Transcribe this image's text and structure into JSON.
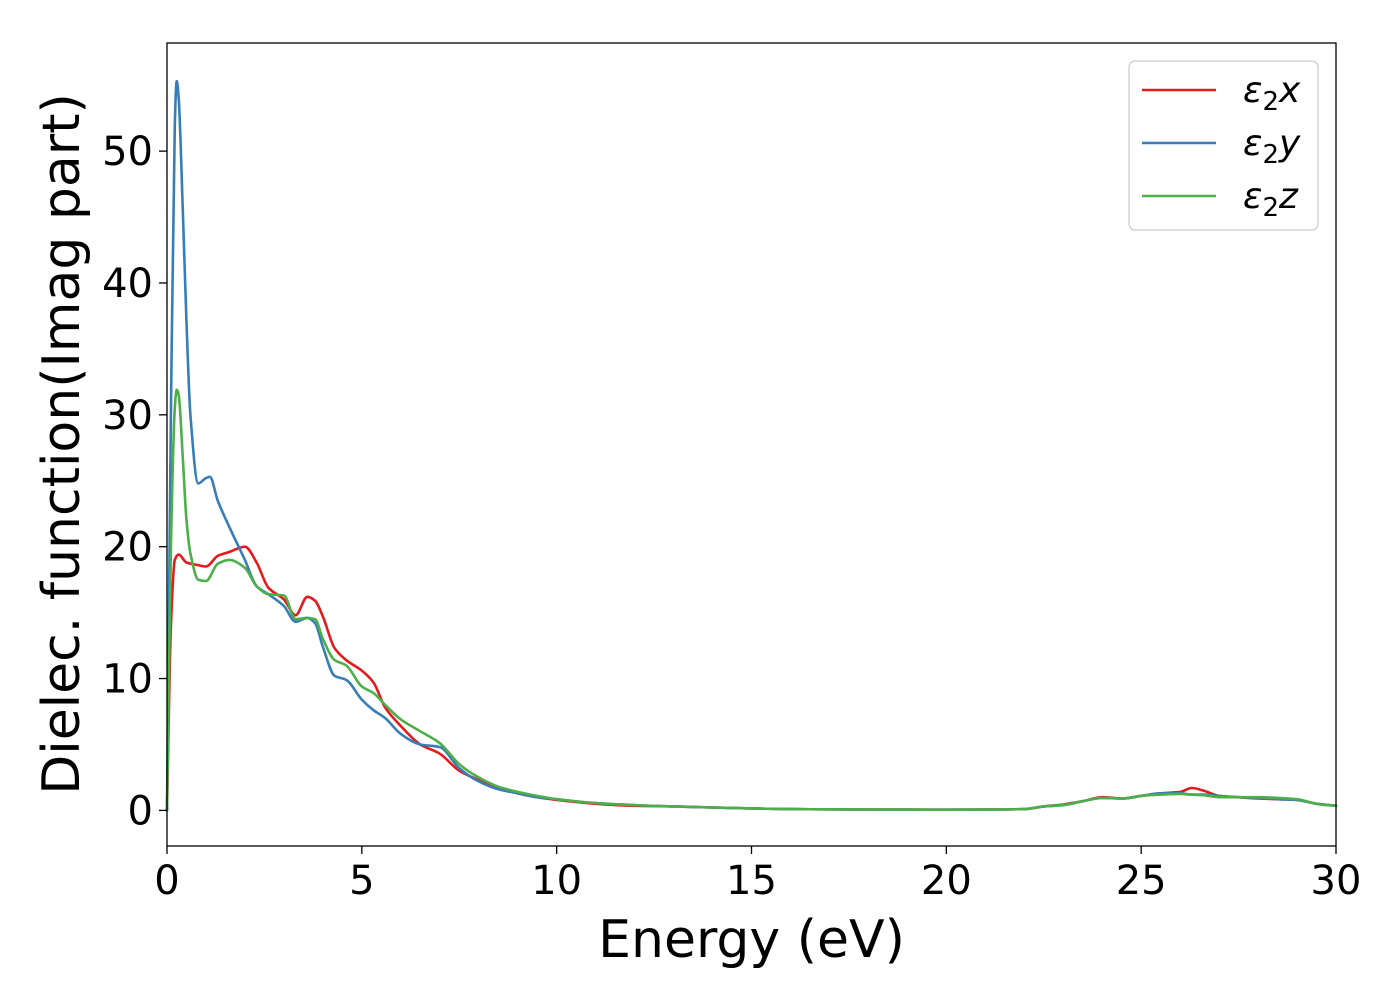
{
  "chart_data": {
    "type": "line",
    "title": "",
    "xlabel": "Energy (eV)",
    "ylabel": "Dielec. function(Imag part)",
    "xlim": [
      0,
      30
    ],
    "ylim": [
      -2.7,
      58.2
    ],
    "xticks": [
      0,
      5,
      10,
      15,
      20,
      25,
      30
    ],
    "xtick_labels": [
      "0",
      "5",
      "10",
      "15",
      "20",
      "25",
      "30"
    ],
    "yticks": [
      0,
      10,
      20,
      30,
      40,
      50
    ],
    "ytick_labels": [
      "0",
      "10",
      "20",
      "30",
      "40",
      "50"
    ],
    "grid": false,
    "legend_position": "top-right",
    "series": [
      {
        "name": "ε2x",
        "legend_base": "ε",
        "legend_sub": "2",
        "legend_suffix": "x",
        "color": "#e41a1c",
        "x": [
          0,
          0.1,
          0.2,
          0.3,
          0.5,
          0.8,
          1.0,
          1.3,
          1.6,
          2.0,
          2.3,
          2.6,
          3.0,
          3.3,
          3.6,
          3.8,
          4.0,
          4.3,
          4.6,
          5.0,
          5.3,
          5.6,
          6.0,
          6.5,
          7.0,
          7.5,
          8.0,
          8.5,
          9.0,
          9.5,
          10,
          11,
          12,
          13,
          14,
          15,
          16,
          17,
          18,
          19,
          20,
          21,
          22,
          22.5,
          23,
          23.5,
          24,
          24.5,
          25,
          25.5,
          26,
          26.3,
          26.6,
          27,
          27.5,
          28,
          28.5,
          29,
          29.5,
          30
        ],
        "y": [
          0,
          14,
          19,
          19.4,
          18.8,
          18.6,
          18.5,
          19.3,
          19.6,
          20.0,
          18.8,
          16.9,
          16.0,
          14.8,
          16.2,
          15.9,
          14.7,
          12.3,
          11.4,
          10.6,
          9.7,
          7.8,
          6.4,
          5.0,
          4.3,
          3.0,
          2.3,
          1.7,
          1.3,
          1.0,
          0.8,
          0.5,
          0.35,
          0.3,
          0.22,
          0.15,
          0.1,
          0.08,
          0.07,
          0.06,
          0.05,
          0.06,
          0.1,
          0.3,
          0.45,
          0.7,
          1.0,
          0.9,
          1.1,
          1.3,
          1.4,
          1.7,
          1.5,
          1.1,
          1.0,
          0.9,
          0.85,
          0.8,
          0.5,
          0.35
        ]
      },
      {
        "name": "ε2y",
        "legend_base": "ε",
        "legend_sub": "2",
        "legend_suffix": "y",
        "color": "#377eb8",
        "x": [
          0,
          0.1,
          0.2,
          0.25,
          0.3,
          0.4,
          0.5,
          0.6,
          0.8,
          1.0,
          1.1,
          1.3,
          1.6,
          2.0,
          2.3,
          2.6,
          3.0,
          3.3,
          3.6,
          3.8,
          4.0,
          4.3,
          4.6,
          5.0,
          5.3,
          5.6,
          6.0,
          6.5,
          7.0,
          7.5,
          8.0,
          8.5,
          9.0,
          9.5,
          10,
          11,
          12,
          13,
          14,
          15,
          16,
          17,
          18,
          19,
          20,
          21,
          22,
          22.5,
          23,
          23.5,
          24,
          24.5,
          25,
          25.5,
          26,
          26.3,
          26.6,
          27,
          27.5,
          28,
          28.5,
          29,
          29.5,
          30
        ],
        "y": [
          0,
          30,
          52,
          55.3,
          54,
          46,
          37,
          30,
          24.8,
          25.2,
          25.3,
          23.5,
          21.5,
          19.0,
          17.0,
          16.4,
          15.5,
          14.3,
          14.6,
          14.2,
          12.4,
          10.2,
          9.9,
          8.4,
          7.6,
          7.0,
          5.8,
          5.0,
          4.8,
          3.2,
          2.2,
          1.6,
          1.3,
          1.0,
          0.85,
          0.55,
          0.4,
          0.3,
          0.22,
          0.15,
          0.1,
          0.08,
          0.07,
          0.06,
          0.05,
          0.06,
          0.1,
          0.3,
          0.4,
          0.7,
          0.95,
          0.9,
          1.1,
          1.3,
          1.3,
          1.2,
          1.2,
          1.1,
          1.0,
          0.95,
          0.85,
          0.8,
          0.5,
          0.35
        ]
      },
      {
        "name": "ε2z",
        "legend_base": "ε",
        "legend_sub": "2",
        "legend_suffix": "z",
        "color": "#4daf4a",
        "x": [
          0,
          0.1,
          0.2,
          0.25,
          0.3,
          0.4,
          0.5,
          0.6,
          0.8,
          1.0,
          1.3,
          1.6,
          2.0,
          2.3,
          2.6,
          3.0,
          3.3,
          3.6,
          3.8,
          4.0,
          4.3,
          4.6,
          5.0,
          5.3,
          5.6,
          6.0,
          6.5,
          7.0,
          7.5,
          8.0,
          8.5,
          9.0,
          9.5,
          10,
          11,
          12,
          13,
          14,
          15,
          16,
          17,
          18,
          19,
          20,
          21,
          22,
          22.5,
          23,
          23.5,
          24,
          24.5,
          25,
          25.5,
          26,
          26.3,
          26.6,
          27,
          27.5,
          28,
          28.5,
          29,
          29.5,
          30
        ],
        "y": [
          0,
          20,
          30.5,
          31.9,
          31.5,
          27,
          22,
          19.5,
          17.5,
          17.4,
          18.7,
          19.0,
          18.4,
          17.0,
          16.4,
          16.3,
          14.5,
          14.6,
          14.5,
          13.0,
          11.4,
          11.0,
          9.4,
          8.9,
          8.0,
          6.9,
          6.0,
          5.1,
          3.5,
          2.5,
          1.8,
          1.4,
          1.1,
          0.85,
          0.55,
          0.4,
          0.3,
          0.22,
          0.15,
          0.1,
          0.08,
          0.07,
          0.06,
          0.05,
          0.06,
          0.1,
          0.3,
          0.4,
          0.7,
          0.95,
          0.9,
          1.1,
          1.2,
          1.25,
          1.2,
          1.15,
          1.0,
          1.0,
          1.0,
          0.95,
          0.85,
          0.5,
          0.35
        ]
      }
    ]
  }
}
